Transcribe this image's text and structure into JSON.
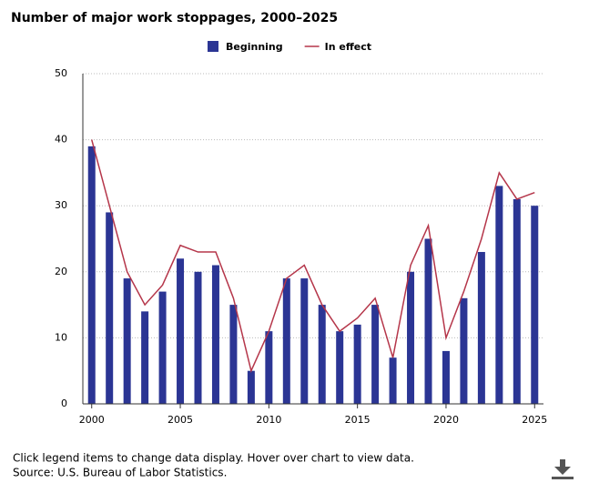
{
  "chart_data": {
    "type": "combo",
    "title": "Number of major work stoppages, 2000–2025",
    "x": [
      2000,
      2001,
      2002,
      2003,
      2004,
      2005,
      2006,
      2007,
      2008,
      2009,
      2010,
      2011,
      2012,
      2013,
      2014,
      2015,
      2016,
      2017,
      2018,
      2019,
      2020,
      2021,
      2022,
      2023,
      2024,
      2025
    ],
    "series": [
      {
        "name": "Beginning",
        "type": "bar",
        "color": "#2b3594",
        "values": [
          39,
          29,
          19,
          14,
          17,
          22,
          20,
          21,
          15,
          5,
          11,
          19,
          19,
          15,
          11,
          12,
          15,
          7,
          20,
          25,
          8,
          16,
          23,
          33,
          31,
          30
        ]
      },
      {
        "name": "In effect",
        "type": "line",
        "color": "#b5364a",
        "values": [
          40,
          30,
          20,
          15,
          18,
          24,
          23,
          23,
          16,
          5,
          11,
          19,
          21,
          15,
          11,
          13,
          16,
          7,
          21,
          27,
          10,
          17,
          25,
          35,
          31,
          32
        ]
      }
    ],
    "xlim": [
      1999.5,
      2025.5
    ],
    "xticks": [
      2000,
      2005,
      2010,
      2015,
      2020,
      2025
    ],
    "ylim": [
      0,
      50
    ],
    "yticks": [
      0,
      10,
      20,
      30,
      40,
      50
    ],
    "grid": true,
    "notes": [
      "Click legend items to change data display. Hover over chart to view data.",
      "Source: U.S. Bureau of Labor Statistics."
    ]
  }
}
